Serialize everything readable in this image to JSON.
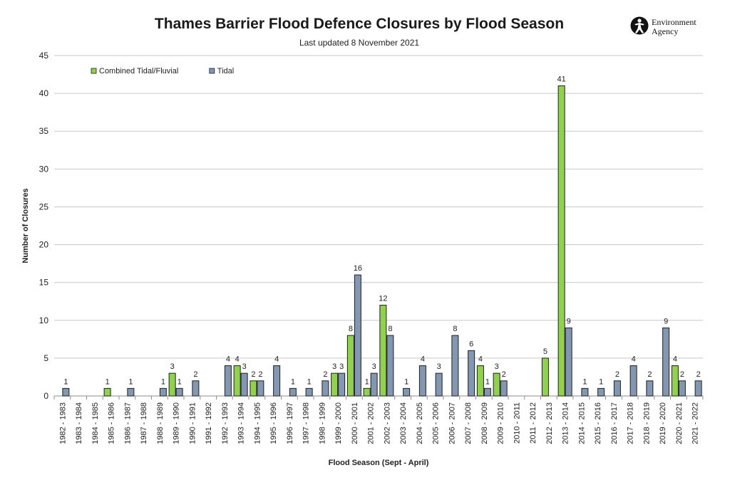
{
  "header": {
    "title": "Thames Barrier Flood Defence Closures by Flood Season",
    "subtitle": "Last updated  8 November 2021"
  },
  "logo": {
    "line1": "Environment",
    "line2": "Agency",
    "icon": "environment-agency-logo-icon"
  },
  "colors": {
    "combined": "#92d050",
    "tidal": "#8497b0",
    "grid": "#c8c8c8",
    "outline": "#1f1f1f"
  },
  "chart_data": {
    "type": "bar",
    "title": "Thames Barrier Flood Defence Closures by Flood Season",
    "subtitle": "Last updated  8 November 2021",
    "xlabel": "Flood Season (Sept - April)",
    "ylabel": "Number of Closures",
    "ylim": [
      0,
      45
    ],
    "yticks": [
      0,
      5,
      10,
      15,
      20,
      25,
      30,
      35,
      40,
      45
    ],
    "grid": true,
    "legend_position": "top-left",
    "categories": [
      "1982 - 1983",
      "1983 - 1984",
      "1984 - 1985",
      "1985 - 1986",
      "1986 - 1987",
      "1987 - 1988",
      "1988 - 1989",
      "1989 - 1990",
      "1990 - 1991",
      "1991 - 1992",
      "1992 - 1993",
      "1993 - 1994",
      "1994 - 1995",
      "1995 - 1996",
      "1996 - 1997",
      "1997 - 1998",
      "1998 - 1999",
      "1999 - 2000",
      "2000 - 2001",
      "2001 - 2002",
      "2002 - 2003",
      "2003 - 2004",
      "2004 - 2005",
      "2005 - 2006",
      "2006 - 2007",
      "2007 - 2008",
      "2008 - 2009",
      "2009 - 2010",
      "2010 - 2011",
      "2011 - 2012",
      "2012 - 2013",
      "2013 - 2014",
      "2014 - 2015",
      "2015 - 2016",
      "2016 - 2017",
      "2017 - 2018",
      "2018 - 2019",
      "2019 - 2020",
      "2020 - 2021",
      "2021 - 2022"
    ],
    "series": [
      {
        "name": "Combined Tidal/Fluvial",
        "color": "#92d050",
        "values": [
          0,
          0,
          0,
          1,
          0,
          0,
          0,
          3,
          0,
          0,
          0,
          4,
          2,
          0,
          0,
          0,
          0,
          3,
          8,
          1,
          12,
          0,
          0,
          0,
          0,
          0,
          4,
          3,
          0,
          0,
          5,
          41,
          0,
          0,
          0,
          0,
          0,
          0,
          4,
          0
        ]
      },
      {
        "name": "Tidal",
        "color": "#8497b0",
        "values": [
          1,
          0,
          0,
          0,
          1,
          0,
          1,
          1,
          2,
          0,
          4,
          3,
          2,
          4,
          1,
          1,
          2,
          3,
          16,
          3,
          8,
          1,
          4,
          3,
          8,
          6,
          1,
          2,
          0,
          0,
          0,
          9,
          1,
          1,
          2,
          4,
          2,
          9,
          2,
          2
        ]
      }
    ]
  }
}
